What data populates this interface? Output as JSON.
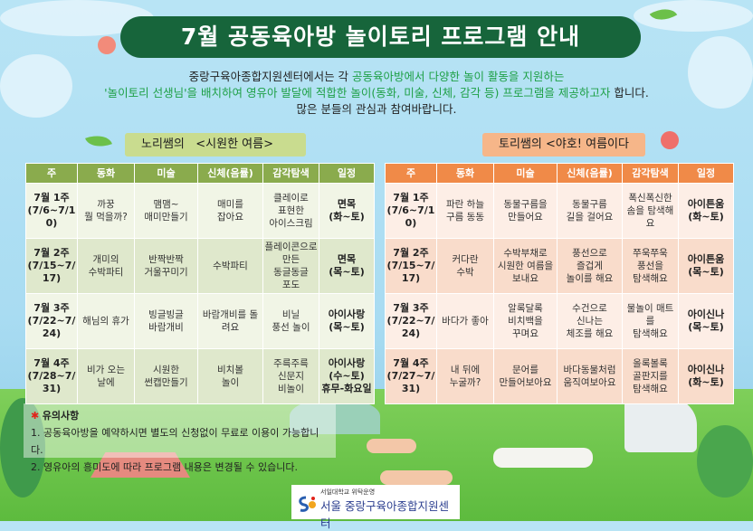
{
  "title": "7월 공동육아방 놀이토리 프로그램 안내",
  "intro": {
    "line1_a": "중랑구육아종합지원센터에서는 각 ",
    "line1_b": "공동육아방에서 다양한 놀이 활동을 지원하는",
    "line2_a": "'놀이토리 선생님'을 배치하여 영유아 발달에 적합한 놀이(동화, 미술, 신체, 감각 등) 프로그램을 제공하고자",
    "line2_b": " 합니다.",
    "line3": "많은 분들의 관심과 참여바랍니다."
  },
  "left_program": {
    "teacher": "노리쌤의",
    "title": "<시원한 여름>",
    "headers": [
      "주",
      "동화",
      "미술",
      "신체(음률)",
      "감각탐색",
      "일정"
    ],
    "rows": [
      [
        "7월 1주\n(7/6~7/10)",
        "까꿍\n뭘 먹을까?",
        "맴맴~\n매미만들기",
        "매미를\n잡아요",
        "클레이로\n표현한\n아이스크림",
        "면목\n(화~토)"
      ],
      [
        "7월 2주\n(7/15~7/17)",
        "개미의\n수박파티",
        "반짝반짝\n거울꾸미기",
        "수박파티",
        "플레이콘으로\n만든\n동글동글\n포도",
        "면목\n(목~토)"
      ],
      [
        "7월 3주\n(7/22~7/24)",
        "해님의 휴가",
        "빙글빙글\n바람개비",
        "바람개비를 돌\n려요",
        "비닐\n풍선 놀이",
        "아이사랑\n(목~토)"
      ],
      [
        "7월 4주\n(7/28~7/31)",
        "비가 오는\n날에",
        "시원한\n썬캡만들기",
        "비치볼\n놀이",
        "주륵주륵\n신문지\n비놀이",
        "아이사랑\n(수~토)\n휴무-화요일"
      ]
    ]
  },
  "right_program": {
    "teacher": "토리쌤의",
    "title": "<야호! 여름이다>",
    "headers": [
      "주",
      "동화",
      "미술",
      "신체(음률)",
      "감각탐색",
      "일정"
    ],
    "rows": [
      [
        "7월 1주\n(7/6~7/10)",
        "파란 하늘\n구름 동동",
        "동물구름을\n만들어요",
        "동물구름\n길을 걸어요",
        "폭신폭신한\n솜을 탐색해요",
        "아이튼움\n(화~토)"
      ],
      [
        "7월 2주\n(7/15~7/17)",
        "커다란\n수박",
        "수박부채로\n시원한 여름을\n보내요",
        "풍선으로\n즐겁게\n놀이를 해요",
        "쭈욱쭈욱\n풍선을\n탐색해요",
        "아이튼움\n(목~토)"
      ],
      [
        "7월 3주\n(7/22~7/24)",
        "바다가 좋아",
        "알록달록\n비치백을\n꾸며요",
        "수건으로\n신나는\n체조를 해요",
        "물놀이 매트를\n탐색해요",
        "아이신나\n(목~토)"
      ],
      [
        "7월 4주\n(7/27~7/31)",
        "내 뒤에\n누굴까?",
        "문어를\n만들어보아요",
        "바다동물처럼\n움직여보아요",
        "올록볼록\n골판지를\n탐색해요",
        "아이신나\n(화~토)"
      ]
    ]
  },
  "notes": {
    "heading": "유의사항",
    "items": [
      "1. 공동육아방을 예약하시면 별도의 신청없이 무료로 이용이 가능합니다.",
      "2. 영유아의 흥미도에 따라 프로그램 내용은 변경될 수 있습니다."
    ]
  },
  "logo": {
    "sub": "서일대학교 위탁운영",
    "name": "서울 중랑구육아종합지원센터"
  },
  "colors": {
    "banner": "#17653b",
    "highlight_text": "#1ea046",
    "left_header": "#8aab4d",
    "right_header": "#f08a48",
    "note_star": "#e2231a"
  }
}
